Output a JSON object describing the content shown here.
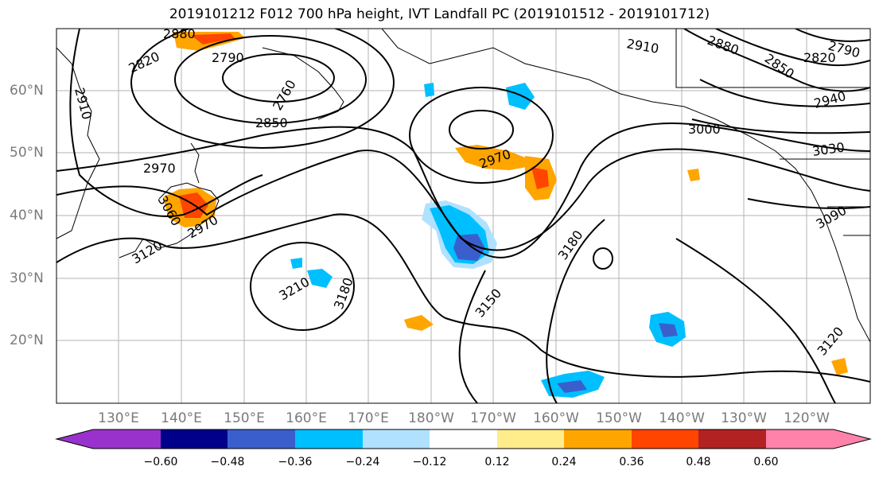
{
  "title": "2019101212 F012 700 hPa height, IVT Landfall PC (2019101512 - 2019101712)",
  "map": {
    "lat_labels": [
      "60°N",
      "50°N",
      "40°N",
      "30°N",
      "20°N"
    ],
    "lon_labels": [
      "130°E",
      "140°E",
      "150°E",
      "160°E",
      "170°E",
      "180°W",
      "170°W",
      "160°W",
      "150°W",
      "140°W",
      "130°W",
      "120°W"
    ],
    "contour_labels": [
      "2880",
      "2820",
      "2790",
      "2760",
      "2850",
      "2910",
      "2970",
      "3060",
      "2970",
      "3120",
      "3210",
      "3180",
      "3150",
      "3180",
      "3000",
      "2970",
      "2910",
      "2880",
      "2850",
      "2820",
      "2790",
      "2940",
      "3030",
      "3090",
      "3120"
    ],
    "colors": {
      "land_outline": "#000000",
      "grid": "#b3b3b3",
      "label_gray": "#7a7a7a"
    }
  },
  "colorbar": {
    "colors": [
      "#9932CC",
      "#00008B",
      "#3A5FCD",
      "#00BFFF",
      "#B0E2FF",
      "#FFFFFF",
      "#FFEC8B",
      "#FFA500",
      "#FF4500",
      "#B22222",
      "#FF82AB"
    ],
    "tick_labels": [
      "−0.60",
      "−0.48",
      "−0.36",
      "−0.24",
      "−0.12",
      "0.12",
      "0.24",
      "0.36",
      "0.48",
      "0.60"
    ]
  }
}
